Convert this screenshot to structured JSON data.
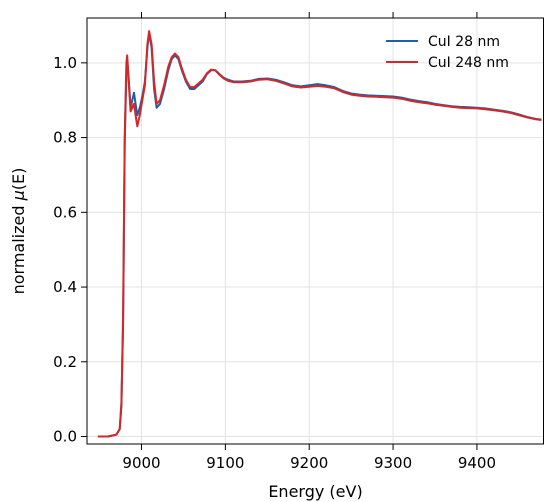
{
  "chart_data": {
    "type": "line",
    "title": "",
    "xlabel": "Energy (eV)",
    "ylabel_prefix": "normalized ",
    "ylabel_symbol": "μ",
    "ylabel_suffix": "(E)",
    "xlim": [
      8935,
      9480
    ],
    "ylim": [
      -0.02,
      1.12
    ],
    "x_ticks": [
      9000,
      9100,
      9200,
      9300,
      9400
    ],
    "x_tick_labels": [
      "9000",
      "9100",
      "9200",
      "9300",
      "9400"
    ],
    "y_ticks": [
      0.0,
      0.2,
      0.4,
      0.6,
      0.8,
      1.0
    ],
    "y_tick_labels": [
      "0.0",
      "0.2",
      "0.4",
      "0.6",
      "0.8",
      "1.0"
    ],
    "grid": true,
    "legend_position": "top-right",
    "series": [
      {
        "name": "CuI 28 nm",
        "color": "#1f5fa8",
        "points": [
          [
            8948,
            0.0
          ],
          [
            8960,
            0.0
          ],
          [
            8970,
            0.005
          ],
          [
            8974,
            0.02
          ],
          [
            8976,
            0.08
          ],
          [
            8978,
            0.3
          ],
          [
            8980,
            0.78
          ],
          [
            8982,
            0.98
          ],
          [
            8983,
            1.01
          ],
          [
            8985,
            0.95
          ],
          [
            8987,
            0.88
          ],
          [
            8989,
            0.9
          ],
          [
            8991,
            0.92
          ],
          [
            8993,
            0.89
          ],
          [
            8995,
            0.86
          ],
          [
            8998,
            0.88
          ],
          [
            9001,
            0.91
          ],
          [
            9004,
            0.95
          ],
          [
            9007,
            1.04
          ],
          [
            9009,
            1.08
          ],
          [
            9012,
            1.04
          ],
          [
            9015,
            0.93
          ],
          [
            9018,
            0.88
          ],
          [
            9022,
            0.89
          ],
          [
            9027,
            0.93
          ],
          [
            9032,
            0.98
          ],
          [
            9036,
            1.01
          ],
          [
            9040,
            1.02
          ],
          [
            9044,
            1.01
          ],
          [
            9048,
            0.98
          ],
          [
            9053,
            0.95
          ],
          [
            9058,
            0.93
          ],
          [
            9063,
            0.93
          ],
          [
            9068,
            0.94
          ],
          [
            9073,
            0.95
          ],
          [
            9078,
            0.97
          ],
          [
            9083,
            0.98
          ],
          [
            9088,
            0.98
          ],
          [
            9093,
            0.97
          ],
          [
            9098,
            0.96
          ],
          [
            9103,
            0.955
          ],
          [
            9110,
            0.95
          ],
          [
            9120,
            0.95
          ],
          [
            9130,
            0.952
          ],
          [
            9140,
            0.957
          ],
          [
            9150,
            0.958
          ],
          [
            9160,
            0.955
          ],
          [
            9170,
            0.948
          ],
          [
            9180,
            0.94
          ],
          [
            9190,
            0.937
          ],
          [
            9200,
            0.94
          ],
          [
            9210,
            0.943
          ],
          [
            9220,
            0.94
          ],
          [
            9230,
            0.935
          ],
          [
            9240,
            0.925
          ],
          [
            9250,
            0.918
          ],
          [
            9260,
            0.915
          ],
          [
            9270,
            0.913
          ],
          [
            9280,
            0.912
          ],
          [
            9290,
            0.911
          ],
          [
            9300,
            0.91
          ],
          [
            9310,
            0.907
          ],
          [
            9320,
            0.902
          ],
          [
            9330,
            0.898
          ],
          [
            9340,
            0.895
          ],
          [
            9350,
            0.89
          ],
          [
            9360,
            0.887
          ],
          [
            9370,
            0.884
          ],
          [
            9380,
            0.882
          ],
          [
            9390,
            0.881
          ],
          [
            9400,
            0.88
          ],
          [
            9410,
            0.878
          ],
          [
            9420,
            0.875
          ],
          [
            9430,
            0.872
          ],
          [
            9440,
            0.868
          ],
          [
            9450,
            0.862
          ],
          [
            9460,
            0.855
          ],
          [
            9470,
            0.85
          ],
          [
            9477,
            0.848
          ]
        ]
      },
      {
        "name": "CuI 248 nm",
        "color": "#d62728",
        "points": [
          [
            8948,
            0.0
          ],
          [
            8960,
            0.0
          ],
          [
            8970,
            0.005
          ],
          [
            8974,
            0.02
          ],
          [
            8976,
            0.09
          ],
          [
            8978,
            0.32
          ],
          [
            8980,
            0.8
          ],
          [
            8982,
            1.0
          ],
          [
            8983,
            1.02
          ],
          [
            8985,
            0.94
          ],
          [
            8987,
            0.87
          ],
          [
            8989,
            0.88
          ],
          [
            8991,
            0.89
          ],
          [
            8993,
            0.86
          ],
          [
            8995,
            0.83
          ],
          [
            8998,
            0.86
          ],
          [
            9001,
            0.9
          ],
          [
            9004,
            0.94
          ],
          [
            9007,
            1.05
          ],
          [
            9009,
            1.085
          ],
          [
            9012,
            1.05
          ],
          [
            9015,
            0.95
          ],
          [
            9018,
            0.89
          ],
          [
            9022,
            0.9
          ],
          [
            9027,
            0.94
          ],
          [
            9032,
            0.99
          ],
          [
            9036,
            1.015
          ],
          [
            9040,
            1.025
          ],
          [
            9044,
            1.015
          ],
          [
            9048,
            0.985
          ],
          [
            9053,
            0.955
          ],
          [
            9058,
            0.935
          ],
          [
            9063,
            0.935
          ],
          [
            9068,
            0.945
          ],
          [
            9073,
            0.955
          ],
          [
            9078,
            0.972
          ],
          [
            9083,
            0.982
          ],
          [
            9088,
            0.98
          ],
          [
            9093,
            0.968
          ],
          [
            9098,
            0.958
          ],
          [
            9103,
            0.952
          ],
          [
            9110,
            0.948
          ],
          [
            9120,
            0.948
          ],
          [
            9130,
            0.95
          ],
          [
            9140,
            0.955
          ],
          [
            9150,
            0.956
          ],
          [
            9160,
            0.952
          ],
          [
            9170,
            0.945
          ],
          [
            9180,
            0.937
          ],
          [
            9190,
            0.934
          ],
          [
            9200,
            0.936
          ],
          [
            9210,
            0.938
          ],
          [
            9220,
            0.936
          ],
          [
            9230,
            0.932
          ],
          [
            9240,
            0.922
          ],
          [
            9250,
            0.915
          ],
          [
            9260,
            0.912
          ],
          [
            9270,
            0.91
          ],
          [
            9280,
            0.909
          ],
          [
            9290,
            0.908
          ],
          [
            9300,
            0.907
          ],
          [
            9310,
            0.904
          ],
          [
            9320,
            0.899
          ],
          [
            9330,
            0.895
          ],
          [
            9340,
            0.892
          ],
          [
            9350,
            0.888
          ],
          [
            9360,
            0.885
          ],
          [
            9370,
            0.882
          ],
          [
            9380,
            0.88
          ],
          [
            9390,
            0.879
          ],
          [
            9400,
            0.878
          ],
          [
            9410,
            0.876
          ],
          [
            9420,
            0.873
          ],
          [
            9430,
            0.87
          ],
          [
            9440,
            0.866
          ],
          [
            9450,
            0.86
          ],
          [
            9460,
            0.854
          ],
          [
            9470,
            0.849
          ],
          [
            9477,
            0.847
          ]
        ]
      }
    ]
  }
}
